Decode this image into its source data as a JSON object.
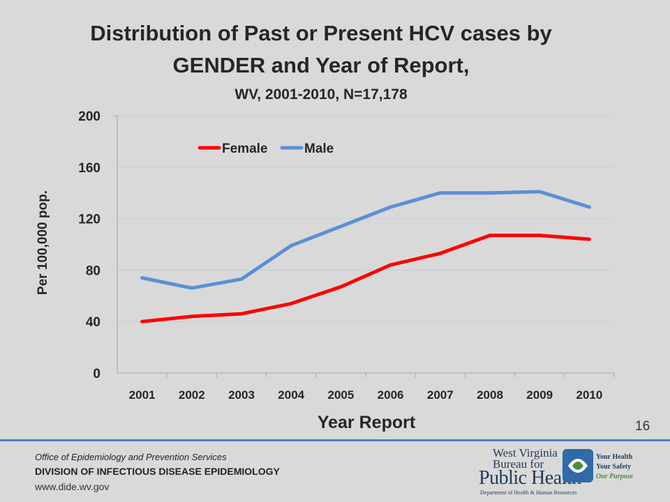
{
  "slide": {
    "title_line1": "Distribution of Past or Present HCV cases by",
    "title_line2": "GENDER and Year of Report,",
    "subtitle": "WV, 2001-2010, N=17,178",
    "page_number": "16"
  },
  "footer": {
    "office": "Office of Epidemiology and Prevention Services",
    "division": "DIVISION OF INFECTIOUS DISEASE EPIDEMIOLOGY",
    "website": "www.dide.wv.gov"
  },
  "logo": {
    "line1": "West Virginia",
    "line2": "Bureau for",
    "line3": "Public Health",
    "line4": "Department of Health & Human Resources",
    "tagline1": "Your Health",
    "tagline2": "Your Safety",
    "tagline3": "Our Purpose"
  },
  "colors": {
    "female": "#ff0000",
    "male": "#5b8fd6",
    "gridline": "#c6d0de",
    "footer_rule": "#4f81bd"
  },
  "chart_data": {
    "type": "line",
    "xlabel": "Year Report",
    "ylabel": "Per 100,000 pop.",
    "ylim": [
      0,
      200
    ],
    "yticks": [
      0,
      40,
      80,
      120,
      160,
      200
    ],
    "grid": true,
    "legend_position": "top",
    "categories": [
      "2001",
      "2002",
      "2003",
      "2004",
      "2005",
      "2006",
      "2007",
      "2008",
      "2009",
      "2010"
    ],
    "series": [
      {
        "name": "Female",
        "values": [
          40,
          44,
          46,
          54,
          67,
          84,
          93,
          107,
          107,
          104
        ]
      },
      {
        "name": "Male",
        "values": [
          74,
          66,
          73,
          99,
          114,
          129,
          140,
          140,
          141,
          129
        ]
      }
    ]
  }
}
